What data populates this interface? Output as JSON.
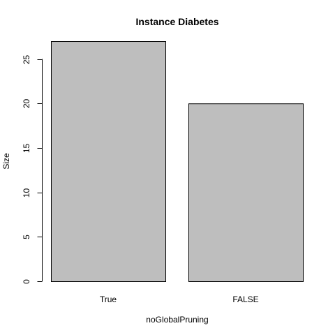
{
  "chart_data": {
    "type": "bar",
    "title": "Instance Diabetes",
    "xlabel": "noGlobalPruning",
    "ylabel": "Size",
    "categories": [
      "True",
      "FALSE"
    ],
    "values": [
      27,
      20
    ],
    "ylim": [
      0,
      27
    ],
    "y_ticks": [
      0,
      5,
      10,
      15,
      20,
      25
    ],
    "bar_fill": "#bebebe",
    "bar_stroke": "#000000",
    "grid": false,
    "legend": "none"
  }
}
